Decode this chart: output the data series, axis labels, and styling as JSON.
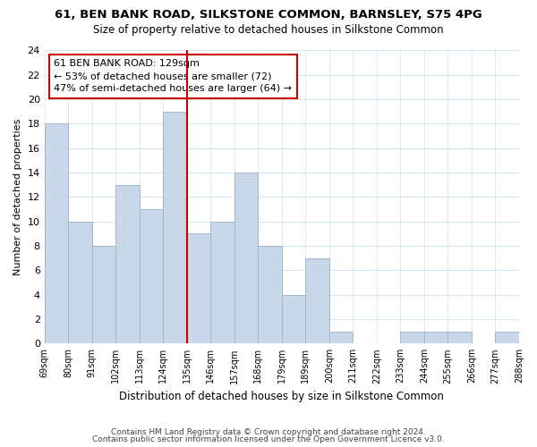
{
  "title1": "61, BEN BANK ROAD, SILKSTONE COMMON, BARNSLEY, S75 4PG",
  "title2": "Size of property relative to detached houses in Silkstone Common",
  "xlabel": "Distribution of detached houses by size in Silkstone Common",
  "ylabel": "Number of detached properties",
  "bin_labels": [
    "69sqm",
    "80sqm",
    "91sqm",
    "102sqm",
    "113sqm",
    "124sqm",
    "135sqm",
    "146sqm",
    "157sqm",
    "168sqm",
    "179sqm",
    "189sqm",
    "200sqm",
    "211sqm",
    "222sqm",
    "233sqm",
    "244sqm",
    "255sqm",
    "266sqm",
    "277sqm",
    "288sqm"
  ],
  "counts": [
    18,
    10,
    8,
    13,
    11,
    19,
    9,
    10,
    14,
    8,
    4,
    7,
    1,
    0,
    0,
    1,
    1,
    1,
    0,
    1
  ],
  "bar_color": "#c8d8e8",
  "bar_edgecolor": "#a0b8cc",
  "highlight_color": "#cc0000",
  "highlight_line_index": 6,
  "annotation_line1": "61 BEN BANK ROAD: 129sqm",
  "annotation_line2": "← 53% of detached houses are smaller (72)",
  "annotation_line3": "47% of semi-detached houses are larger (64) →",
  "ylim": [
    0,
    24
  ],
  "yticks": [
    0,
    2,
    4,
    6,
    8,
    10,
    12,
    14,
    16,
    18,
    20,
    22,
    24
  ],
  "footer1": "Contains HM Land Registry data © Crown copyright and database right 2024.",
  "footer2": "Contains public sector information licensed under the Open Government Licence v3.0.",
  "background_color": "#ffffff",
  "grid_color": "#d8e4ee"
}
